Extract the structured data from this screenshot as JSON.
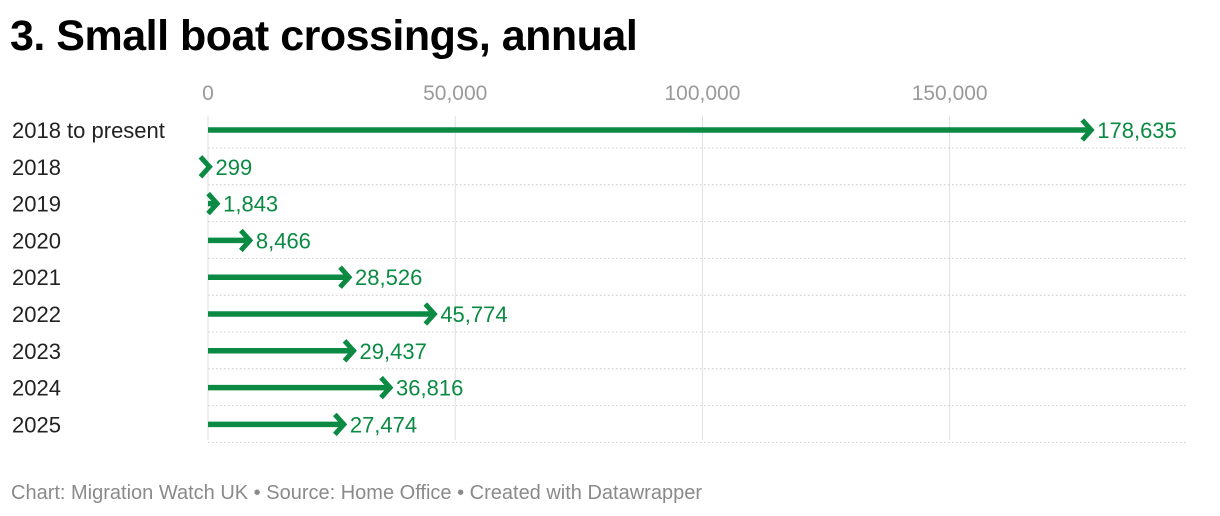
{
  "title": "3. Small boat crossings, annual",
  "footer": {
    "chart_credit": "Chart: Migration Watch UK",
    "source": "Source: Home Office",
    "created_with": "Created with Datawrapper",
    "separator": "•"
  },
  "colors": {
    "arrow": "#0b8a43",
    "label": "#0b8a43",
    "grid": "#dedede",
    "row_line": "#cccccc",
    "tick_label": "#9a9a9a",
    "category_label": "#222222"
  },
  "chart_data": {
    "type": "bar",
    "style": "arrow",
    "categories": [
      "2018 to present",
      "2018",
      "2019",
      "2020",
      "2021",
      "2022",
      "2023",
      "2024",
      "2025"
    ],
    "values": [
      178635,
      299,
      1843,
      8466,
      28526,
      45774,
      29437,
      36816,
      27474
    ],
    "value_labels": [
      "178,635",
      "299",
      "1,843",
      "8,466",
      "28,526",
      "45,774",
      "29,437",
      "36,816",
      "27,474"
    ],
    "x_ticks": [
      0,
      50000,
      100000,
      150000
    ],
    "x_tick_labels": [
      "0",
      "50,000",
      "100,000",
      "150,000"
    ],
    "xlim": [
      0,
      198000
    ],
    "title": "3. Small boat crossings, annual",
    "xlabel": "",
    "ylabel": "",
    "grid": true,
    "legend": "none",
    "orientation": "horizontal"
  }
}
